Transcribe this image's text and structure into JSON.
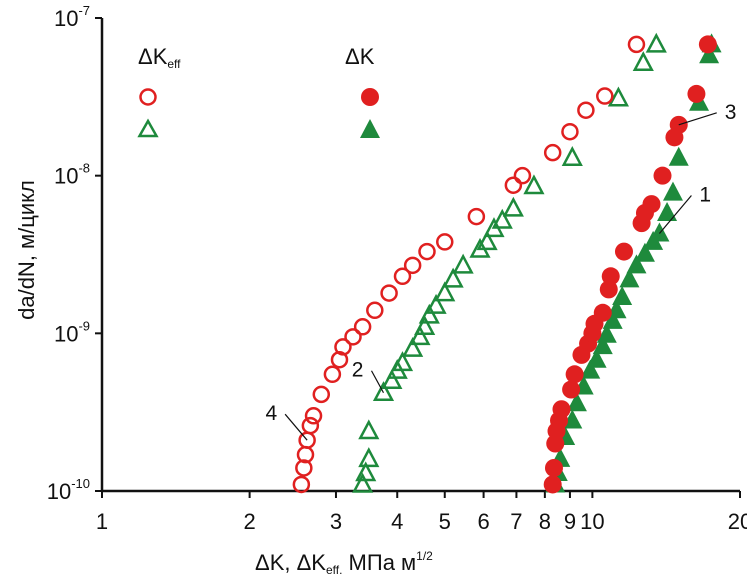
{
  "chart_data": {
    "type": "scatter",
    "xlabel": "ΔK, ΔK",
    "xlabel_sub": "eff.",
    "xlabel_unit": " МПа м",
    "xlabel_sup": "1/2",
    "ylabel": "da/dN, м/цикл",
    "x_scale": "log",
    "y_scale": "log",
    "xlim": [
      1,
      20
    ],
    "ylim": [
      1e-10,
      1e-07
    ],
    "grid": false,
    "x_ticks": [
      {
        "value": 1,
        "label": "1"
      },
      {
        "value": 2,
        "label": "2"
      },
      {
        "value": 3,
        "label": "3"
      },
      {
        "value": 4,
        "label": "4"
      },
      {
        "value": 5,
        "label": "5"
      },
      {
        "value": 6,
        "label": "6"
      },
      {
        "value": 7,
        "label": "7"
      },
      {
        "value": 8,
        "label": "8"
      },
      {
        "value": 9,
        "label": "9"
      },
      {
        "value": 10,
        "label": "10"
      },
      {
        "value": 20,
        "label": "20"
      }
    ],
    "y_ticks": [
      {
        "value": 1e-10,
        "base": "10",
        "exp": "-10"
      },
      {
        "value": 1e-09,
        "base": "10",
        "exp": "-9"
      },
      {
        "value": 1e-08,
        "base": "10",
        "exp": "-8"
      },
      {
        "value": 1e-07,
        "base": "10",
        "exp": "-7"
      }
    ],
    "legend": {
      "placement": "top-left",
      "col1_title": "ΔK",
      "col1_title_sub": "eff",
      "col2_title": "ΔK"
    },
    "series": [
      {
        "id": "1",
        "marker": "triangle",
        "filled": true,
        "color": "#1e8a3c",
        "points": [
          [
            8.4,
            1.1e-10
          ],
          [
            8.5,
            1.3e-10
          ],
          [
            8.6,
            1.6e-10
          ],
          [
            8.8,
            2.2e-10
          ],
          [
            9.1,
            2.8e-10
          ],
          [
            9.3,
            3.6e-10
          ],
          [
            9.6,
            4.6e-10
          ],
          [
            9.9,
            5.8e-10
          ],
          [
            10.2,
            6.8e-10
          ],
          [
            10.5,
            8.3e-10
          ],
          [
            10.7,
            9.8e-10
          ],
          [
            11.0,
            1.2e-09
          ],
          [
            11.2,
            1.4e-09
          ],
          [
            11.5,
            1.7e-09
          ],
          [
            11.9,
            2.2e-09
          ],
          [
            12.3,
            2.7e-09
          ],
          [
            12.8,
            3.2e-09
          ],
          [
            13.3,
            3.8e-09
          ],
          [
            13.7,
            4.3e-09
          ],
          [
            14.2,
            5.8e-09
          ],
          [
            14.6,
            7.8e-09
          ],
          [
            15.0,
            1.3e-08
          ],
          [
            16.5,
            2.9e-08
          ],
          [
            17.3,
            5.8e-08
          ],
          [
            17.5,
            6.8e-08
          ]
        ]
      },
      {
        "id": "2",
        "marker": "triangle",
        "filled": false,
        "color": "#1e8a3c",
        "points": [
          [
            3.4,
            1.1e-10
          ],
          [
            3.45,
            1.3e-10
          ],
          [
            3.5,
            1.6e-10
          ],
          [
            3.5,
            2.4e-10
          ],
          [
            3.75,
            4.2e-10
          ],
          [
            3.9,
            5e-10
          ],
          [
            4.0,
            5.8e-10
          ],
          [
            4.1,
            6.5e-10
          ],
          [
            4.3,
            8e-10
          ],
          [
            4.45,
            9.5e-10
          ],
          [
            4.55,
            1.1e-09
          ],
          [
            4.65,
            1.3e-09
          ],
          [
            4.8,
            1.5e-09
          ],
          [
            5.0,
            1.8e-09
          ],
          [
            5.2,
            2.2e-09
          ],
          [
            5.45,
            2.7e-09
          ],
          [
            5.9,
            3.4e-09
          ],
          [
            6.1,
            3.8e-09
          ],
          [
            6.3,
            4.6e-09
          ],
          [
            6.55,
            5.2e-09
          ],
          [
            6.9,
            6.2e-09
          ],
          [
            7.6,
            8.6e-09
          ],
          [
            9.1,
            1.3e-08
          ],
          [
            11.3,
            3.1e-08
          ],
          [
            12.7,
            5.2e-08
          ],
          [
            13.5,
            6.8e-08
          ]
        ]
      },
      {
        "id": "3",
        "marker": "circle",
        "filled": true,
        "color": "#e02020",
        "points": [
          [
            8.3,
            1.1e-10
          ],
          [
            8.35,
            1.4e-10
          ],
          [
            8.4,
            2e-10
          ],
          [
            8.45,
            2.4e-10
          ],
          [
            8.55,
            2.8e-10
          ],
          [
            8.65,
            3.3e-10
          ],
          [
            9.05,
            4.4e-10
          ],
          [
            9.2,
            5.5e-10
          ],
          [
            9.5,
            7.3e-10
          ],
          [
            9.8,
            8.6e-10
          ],
          [
            10.0,
            1e-09
          ],
          [
            10.1,
            1.15e-09
          ],
          [
            10.5,
            1.35e-09
          ],
          [
            10.8,
            1.9e-09
          ],
          [
            10.9,
            2.3e-09
          ],
          [
            11.6,
            3.3e-09
          ],
          [
            12.6,
            5e-09
          ],
          [
            12.8,
            5.8e-09
          ],
          [
            13.2,
            6.6e-09
          ],
          [
            13.9,
            1e-08
          ],
          [
            14.7,
            1.75e-08
          ],
          [
            15.0,
            2.1e-08
          ],
          [
            16.3,
            3.3e-08
          ],
          [
            17.2,
            6.8e-08
          ]
        ]
      },
      {
        "id": "4",
        "marker": "circle",
        "filled": false,
        "color": "#e02020",
        "points": [
          [
            2.55,
            1.1e-10
          ],
          [
            2.58,
            1.4e-10
          ],
          [
            2.6,
            1.7e-10
          ],
          [
            2.62,
            2.1e-10
          ],
          [
            2.66,
            2.6e-10
          ],
          [
            2.7,
            3e-10
          ],
          [
            2.8,
            4.1e-10
          ],
          [
            2.95,
            5.5e-10
          ],
          [
            3.05,
            6.8e-10
          ],
          [
            3.1,
            8.2e-10
          ],
          [
            3.25,
            9.5e-10
          ],
          [
            3.4,
            1.1e-09
          ],
          [
            3.6,
            1.4e-09
          ],
          [
            3.85,
            1.8e-09
          ],
          [
            4.1,
            2.3e-09
          ],
          [
            4.3,
            2.7e-09
          ],
          [
            4.6,
            3.3e-09
          ],
          [
            5.0,
            3.8e-09
          ],
          [
            5.8,
            5.5e-09
          ],
          [
            6.9,
            8.7e-09
          ],
          [
            7.2,
            1e-08
          ],
          [
            8.3,
            1.4e-08
          ],
          [
            9.0,
            1.9e-08
          ],
          [
            9.7,
            2.6e-08
          ],
          [
            10.6,
            3.2e-08
          ],
          [
            12.3,
            6.8e-08
          ]
        ]
      }
    ],
    "annotations": [
      {
        "label": "1",
        "target": [
          13.7,
          4.3e-09
        ]
      },
      {
        "label": "2",
        "target": [
          3.75,
          4.2e-10
        ]
      },
      {
        "label": "3",
        "target": [
          15.0,
          2.1e-08
        ]
      },
      {
        "label": "4",
        "target": [
          2.62,
          2.1e-10
        ]
      }
    ]
  }
}
